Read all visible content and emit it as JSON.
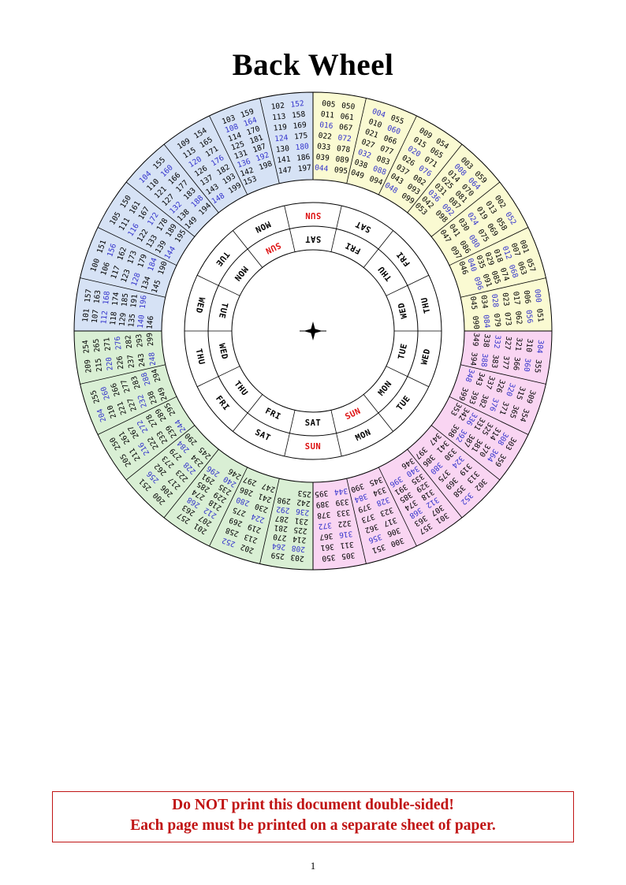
{
  "page": {
    "title": "Back Wheel",
    "page_number": "1"
  },
  "notice": {
    "line1": "Do NOT print this document double-sided!",
    "line2": "Each page must be printed on a separate sheet of paper.",
    "color": "#c01414"
  },
  "wheel": {
    "colors": {
      "yellow": "#fafad2",
      "pink": "#f9d5f2",
      "green": "#d9efd4",
      "blue": "#d6e2f5",
      "leap_number": "#3333cc",
      "sun_label": "#dd1111",
      "line": "#000000"
    },
    "day_rings": {
      "days_clockwise_from_top": [
        "SUN",
        "SAT",
        "FRI",
        "THU",
        "WED",
        "TUE",
        "MON",
        "SUN",
        "SAT",
        "FRI",
        "THU",
        "WED",
        "TUE",
        "MON"
      ],
      "outer_ring_offset_deg": 0,
      "inner_ring_offset_deg": -25.714
    },
    "quadrants": [
      {
        "name": "yellow",
        "start_deg": 0,
        "sectors": [
          [
            "005",
            "011",
            "016",
            "022",
            "033",
            "039",
            "044",
            "050",
            "061",
            "067",
            "072",
            "078",
            "089",
            "095"
          ],
          [
            "004",
            "010",
            "021",
            "027",
            "032",
            "038",
            "049",
            "055",
            "060",
            "066",
            "077",
            "083",
            "088",
            "094"
          ],
          [
            "009",
            "015",
            "020",
            "026",
            "037",
            "043",
            "048",
            "054",
            "065",
            "071",
            "076",
            "082",
            "093",
            "099"
          ],
          [
            "003",
            "008",
            "014",
            "025",
            "031",
            "036",
            "042",
            "053",
            "059",
            "064",
            "070",
            "081",
            "087",
            "092",
            "098"
          ],
          [
            "002",
            "013",
            "019",
            "024",
            "030",
            "041",
            "047",
            "052",
            "058",
            "069",
            "075",
            "080",
            "086",
            "097"
          ],
          [
            "001",
            "007",
            "012",
            "018",
            "029",
            "035",
            "040",
            "046",
            "057",
            "063",
            "068",
            "074",
            "085",
            "091",
            "096"
          ],
          [
            "000",
            "006",
            "017",
            "023",
            "028",
            "034",
            "045",
            "051",
            "056",
            "062",
            "073",
            "079",
            "084",
            "090"
          ]
        ]
      },
      {
        "name": "pink",
        "start_deg": 90,
        "sectors": [
          [
            "304",
            "310",
            "321",
            "327",
            "332",
            "338",
            "349",
            "355",
            "360",
            "366",
            "377",
            "383",
            "388",
            "394"
          ],
          [
            "309",
            "315",
            "320",
            "326",
            "337",
            "343",
            "348",
            "354",
            "365",
            "371",
            "376",
            "382",
            "393",
            "399"
          ],
          [
            "303",
            "308",
            "314",
            "325",
            "331",
            "336",
            "342",
            "353",
            "359",
            "364",
            "370",
            "381",
            "387",
            "392",
            "398"
          ],
          [
            "302",
            "313",
            "319",
            "324",
            "330",
            "341",
            "347",
            "352",
            "358",
            "369",
            "375",
            "380",
            "386",
            "397"
          ],
          [
            "301",
            "307",
            "312",
            "318",
            "329",
            "335",
            "340",
            "346",
            "357",
            "363",
            "368",
            "374",
            "385",
            "391",
            "396"
          ],
          [
            "300",
            "306",
            "317",
            "323",
            "328",
            "334",
            "345",
            "351",
            "356",
            "362",
            "373",
            "379",
            "384",
            "390"
          ],
          [
            "305",
            "311",
            "316",
            "322",
            "333",
            "339",
            "344",
            "350",
            "361",
            "367",
            "372",
            "378",
            "389",
            "395"
          ]
        ]
      },
      {
        "name": "green",
        "start_deg": 180,
        "sectors": [
          [
            "203",
            "208",
            "214",
            "225",
            "231",
            "236",
            "242",
            "253",
            "259",
            "264",
            "270",
            "281",
            "287",
            "292",
            "298"
          ],
          [
            "202",
            "213",
            "219",
            "224",
            "230",
            "241",
            "247",
            "252",
            "258",
            "269",
            "275",
            "280",
            "286",
            "297"
          ],
          [
            "201",
            "207",
            "212",
            "218",
            "229",
            "235",
            "240",
            "246",
            "257",
            "263",
            "268",
            "274",
            "285",
            "291",
            "296"
          ],
          [
            "200",
            "206",
            "217",
            "223",
            "228",
            "234",
            "245",
            "251",
            "256",
            "262",
            "273",
            "279",
            "284",
            "290"
          ],
          [
            "205",
            "211",
            "216",
            "222",
            "233",
            "239",
            "244",
            "250",
            "261",
            "267",
            "272",
            "278",
            "289",
            "295"
          ],
          [
            "204",
            "210",
            "221",
            "227",
            "232",
            "238",
            "249",
            "255",
            "260",
            "266",
            "277",
            "283",
            "288",
            "294"
          ],
          [
            "209",
            "215",
            "220",
            "226",
            "237",
            "243",
            "248",
            "254",
            "265",
            "271",
            "276",
            "282",
            "293",
            "299"
          ]
        ]
      },
      {
        "name": "blue",
        "start_deg": 270,
        "sectors": [
          [
            "101",
            "107",
            "112",
            "118",
            "129",
            "135",
            "140",
            "146",
            "157",
            "163",
            "168",
            "174",
            "185",
            "191",
            "196"
          ],
          [
            "100",
            "106",
            "117",
            "123",
            "128",
            "134",
            "145",
            "151",
            "156",
            "162",
            "173",
            "179",
            "184",
            "190"
          ],
          [
            "105",
            "111",
            "116",
            "122",
            "133",
            "139",
            "144",
            "150",
            "161",
            "167",
            "172",
            "178",
            "189",
            "195"
          ],
          [
            "104",
            "110",
            "121",
            "127",
            "132",
            "138",
            "149",
            "155",
            "160",
            "166",
            "177",
            "183",
            "188",
            "194"
          ],
          [
            "109",
            "115",
            "120",
            "126",
            "137",
            "143",
            "148",
            "154",
            "165",
            "171",
            "176",
            "182",
            "193",
            "199"
          ],
          [
            "103",
            "108",
            "114",
            "125",
            "131",
            "136",
            "142",
            "153",
            "159",
            "164",
            "170",
            "181",
            "187",
            "192",
            "198"
          ],
          [
            "102",
            "113",
            "119",
            "124",
            "130",
            "141",
            "147",
            "152",
            "158",
            "169",
            "175",
            "180",
            "186",
            "197"
          ]
        ]
      }
    ]
  }
}
